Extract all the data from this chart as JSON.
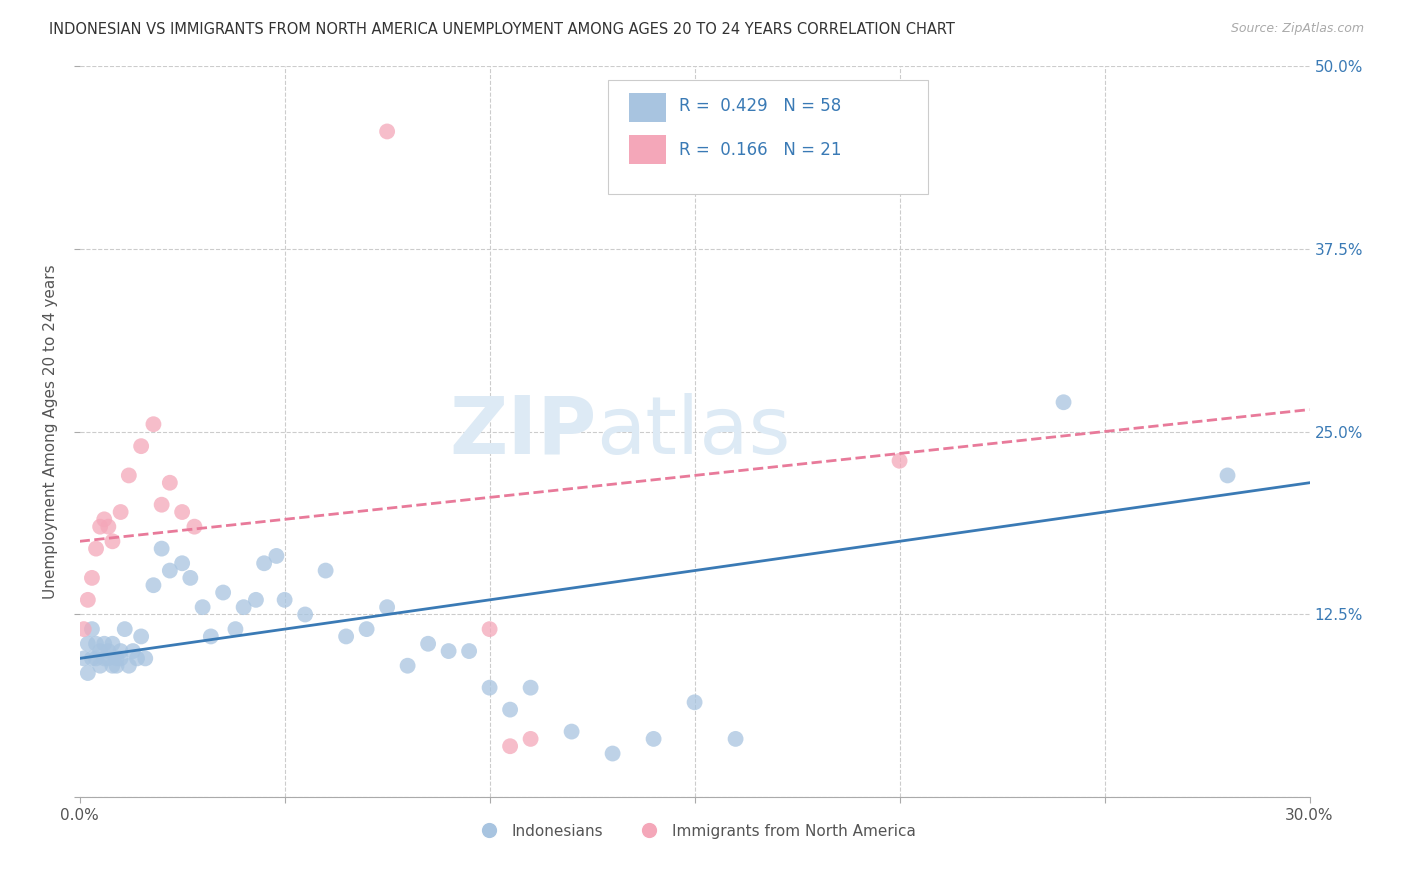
{
  "title": "INDONESIAN VS IMMIGRANTS FROM NORTH AMERICA UNEMPLOYMENT AMONG AGES 20 TO 24 YEARS CORRELATION CHART",
  "source": "Source: ZipAtlas.com",
  "ylabel": "Unemployment Among Ages 20 to 24 years",
  "xlim": [
    0.0,
    0.3
  ],
  "ylim": [
    0.0,
    0.5
  ],
  "yticks": [
    0.0,
    0.125,
    0.25,
    0.375,
    0.5
  ],
  "yticklabels_right": [
    "",
    "12.5%",
    "25.0%",
    "37.5%",
    "50.0%"
  ],
  "blue_R": 0.429,
  "blue_N": 58,
  "pink_R": 0.166,
  "pink_N": 21,
  "blue_color": "#a8c4e0",
  "pink_color": "#f4a7b9",
  "blue_line_color": "#3a7ab5",
  "pink_line_color": "#e87a9a",
  "legend_label_blue": "Indonesians",
  "legend_label_pink": "Immigrants from North America",
  "watermark": "ZIPatlas",
  "blue_points": [
    [
      0.001,
      0.095
    ],
    [
      0.002,
      0.105
    ],
    [
      0.002,
      0.085
    ],
    [
      0.003,
      0.095
    ],
    [
      0.003,
      0.115
    ],
    [
      0.004,
      0.105
    ],
    [
      0.004,
      0.095
    ],
    [
      0.005,
      0.1
    ],
    [
      0.005,
      0.09
    ],
    [
      0.006,
      0.095
    ],
    [
      0.006,
      0.105
    ],
    [
      0.007,
      0.1
    ],
    [
      0.007,
      0.095
    ],
    [
      0.008,
      0.09
    ],
    [
      0.008,
      0.105
    ],
    [
      0.009,
      0.095
    ],
    [
      0.009,
      0.09
    ],
    [
      0.01,
      0.095
    ],
    [
      0.01,
      0.1
    ],
    [
      0.011,
      0.115
    ],
    [
      0.012,
      0.09
    ],
    [
      0.013,
      0.1
    ],
    [
      0.014,
      0.095
    ],
    [
      0.015,
      0.11
    ],
    [
      0.016,
      0.095
    ],
    [
      0.018,
      0.145
    ],
    [
      0.02,
      0.17
    ],
    [
      0.022,
      0.155
    ],
    [
      0.025,
      0.16
    ],
    [
      0.027,
      0.15
    ],
    [
      0.03,
      0.13
    ],
    [
      0.032,
      0.11
    ],
    [
      0.035,
      0.14
    ],
    [
      0.038,
      0.115
    ],
    [
      0.04,
      0.13
    ],
    [
      0.043,
      0.135
    ],
    [
      0.045,
      0.16
    ],
    [
      0.048,
      0.165
    ],
    [
      0.05,
      0.135
    ],
    [
      0.055,
      0.125
    ],
    [
      0.06,
      0.155
    ],
    [
      0.065,
      0.11
    ],
    [
      0.07,
      0.115
    ],
    [
      0.075,
      0.13
    ],
    [
      0.08,
      0.09
    ],
    [
      0.085,
      0.105
    ],
    [
      0.09,
      0.1
    ],
    [
      0.095,
      0.1
    ],
    [
      0.1,
      0.075
    ],
    [
      0.105,
      0.06
    ],
    [
      0.11,
      0.075
    ],
    [
      0.12,
      0.045
    ],
    [
      0.13,
      0.03
    ],
    [
      0.14,
      0.04
    ],
    [
      0.15,
      0.065
    ],
    [
      0.16,
      0.04
    ],
    [
      0.24,
      0.27
    ],
    [
      0.28,
      0.22
    ]
  ],
  "pink_points": [
    [
      0.001,
      0.115
    ],
    [
      0.002,
      0.135
    ],
    [
      0.003,
      0.15
    ],
    [
      0.004,
      0.17
    ],
    [
      0.005,
      0.185
    ],
    [
      0.006,
      0.19
    ],
    [
      0.007,
      0.185
    ],
    [
      0.008,
      0.175
    ],
    [
      0.01,
      0.195
    ],
    [
      0.012,
      0.22
    ],
    [
      0.015,
      0.24
    ],
    [
      0.018,
      0.255
    ],
    [
      0.02,
      0.2
    ],
    [
      0.022,
      0.215
    ],
    [
      0.025,
      0.195
    ],
    [
      0.028,
      0.185
    ],
    [
      0.1,
      0.115
    ],
    [
      0.105,
      0.035
    ],
    [
      0.11,
      0.04
    ],
    [
      0.2,
      0.23
    ],
    [
      0.075,
      0.455
    ]
  ],
  "blue_trend_x": [
    0.0,
    0.3
  ],
  "blue_trend_y": [
    0.095,
    0.215
  ],
  "pink_trend_x": [
    0.0,
    0.3
  ],
  "pink_trend_y": [
    0.175,
    0.265
  ]
}
